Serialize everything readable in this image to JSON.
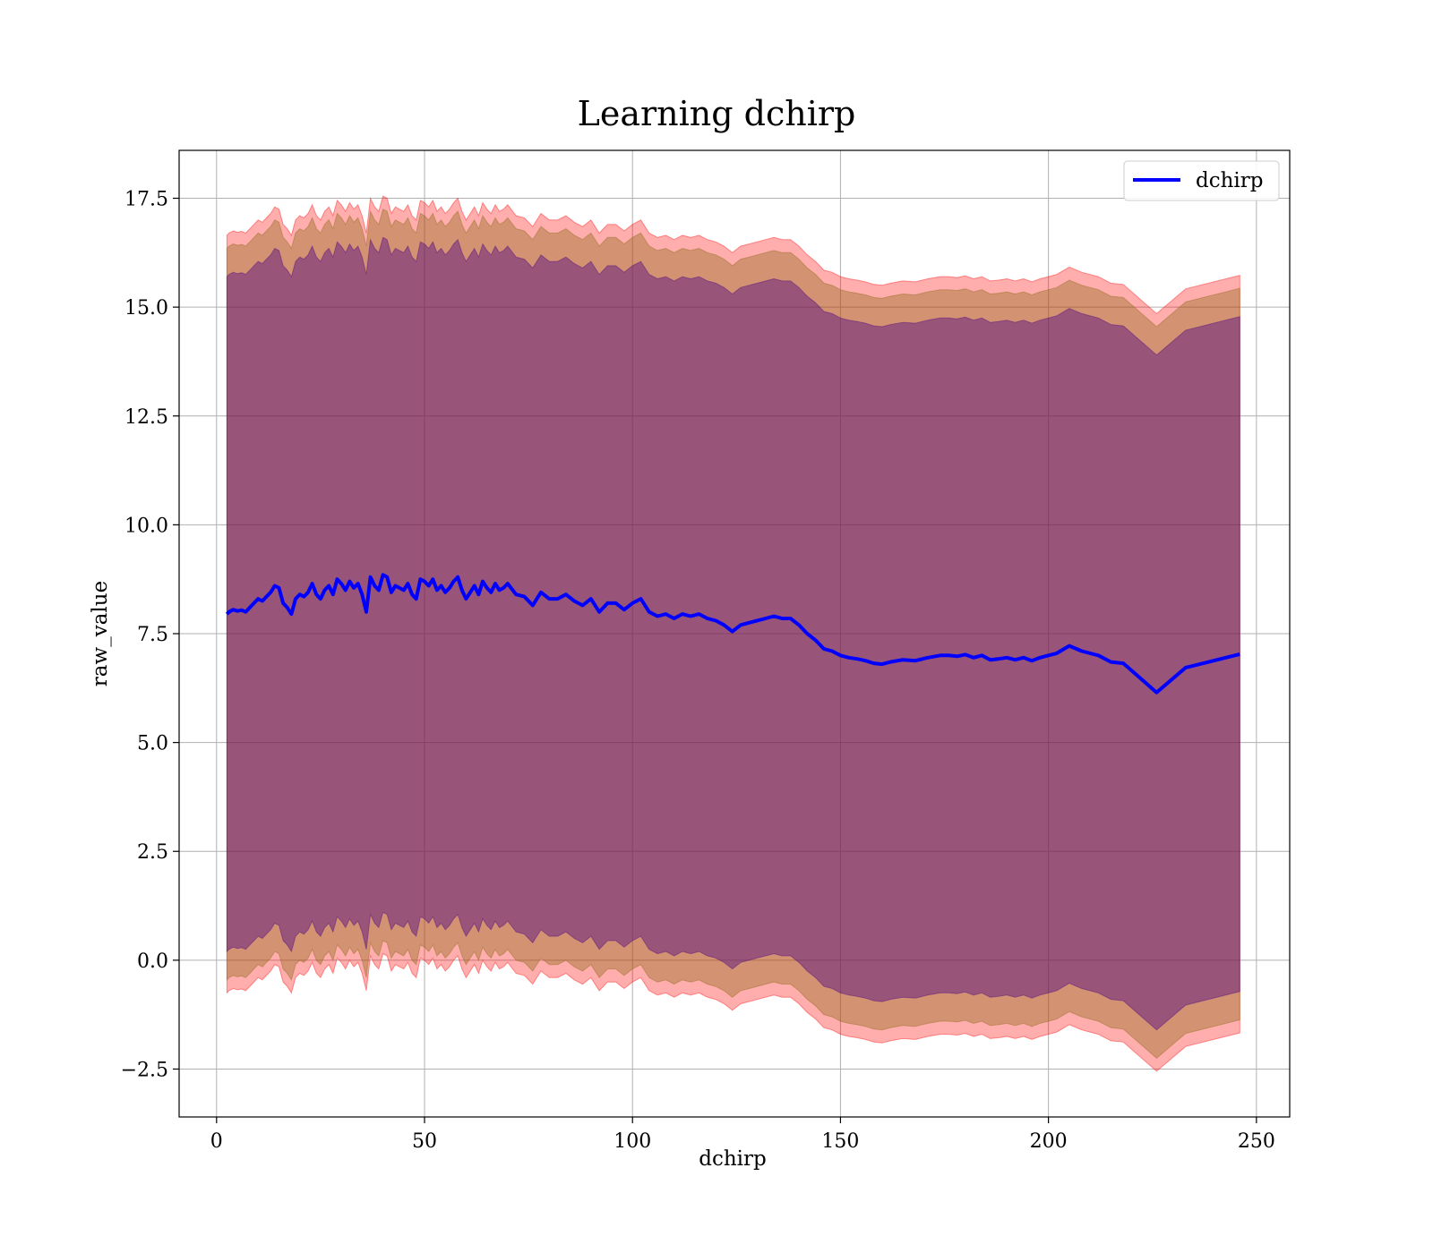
{
  "chart_data": {
    "type": "line",
    "title": "Learning dchirp",
    "xlabel": "dchirp",
    "ylabel": "raw_value",
    "xlim": [
      -9,
      258
    ],
    "ylim": [
      -3.6,
      18.6
    ],
    "xticks": [
      0,
      50,
      100,
      150,
      200,
      250
    ],
    "yticks": [
      -2.5,
      0.0,
      2.5,
      5.0,
      7.5,
      10.0,
      12.5,
      15.0,
      17.5
    ],
    "xtick_labels": [
      "0",
      "50",
      "100",
      "150",
      "200",
      "250"
    ],
    "ytick_labels": [
      "−2.5",
      "0.0",
      "2.5",
      "5.0",
      "7.5",
      "10.0",
      "12.5",
      "15.0",
      "17.5"
    ],
    "grid": true,
    "legend": {
      "placement": "top-right",
      "entries": [
        "dchirp"
      ]
    },
    "colors": {
      "line": "#0000ff",
      "outer_band": "#ff0000",
      "middle_band": "#8b6914",
      "inner_band": "#4b0082",
      "grid": "#b0b0b0"
    },
    "series": [
      {
        "name": "dchirp",
        "x": [
          2.5,
          3,
          4,
          5,
          6,
          7,
          8,
          9,
          10,
          11,
          12,
          13,
          14,
          15,
          16,
          17,
          18,
          19,
          20,
          21,
          22,
          23,
          24,
          25,
          26,
          27,
          28,
          29,
          30,
          31,
          32,
          33,
          34,
          35,
          36,
          37,
          38,
          39,
          40,
          41,
          42,
          43,
          44,
          45,
          46,
          47,
          48,
          49,
          50,
          51,
          52,
          53,
          54,
          55,
          56,
          57,
          58,
          59,
          60,
          61,
          62,
          63,
          64,
          65,
          66,
          67,
          68,
          69,
          70,
          72,
          74,
          76,
          78,
          80,
          82,
          84,
          86,
          88,
          90,
          92,
          94,
          96,
          98,
          100,
          102,
          104,
          106,
          108,
          110,
          112,
          114,
          116,
          118,
          120,
          122,
          124,
          126,
          128,
          130,
          132,
          134,
          136,
          138,
          140,
          142,
          144,
          146,
          148,
          150,
          152,
          154,
          156,
          158,
          160,
          162,
          165,
          168,
          171,
          174,
          176,
          178,
          180,
          182,
          184,
          186,
          188,
          190,
          192,
          194,
          196,
          198,
          200,
          202,
          205,
          208,
          212,
          215,
          218,
          226,
          233,
          246
        ],
        "y": [
          7.95,
          8.0,
          8.05,
          8.02,
          8.04,
          8.0,
          8.1,
          8.2,
          8.3,
          8.25,
          8.35,
          8.45,
          8.6,
          8.55,
          8.2,
          8.1,
          7.95,
          8.3,
          8.4,
          8.35,
          8.45,
          8.65,
          8.4,
          8.3,
          8.5,
          8.6,
          8.4,
          8.75,
          8.65,
          8.5,
          8.7,
          8.55,
          8.65,
          8.4,
          8.0,
          8.8,
          8.6,
          8.5,
          8.85,
          8.8,
          8.45,
          8.6,
          8.55,
          8.5,
          8.65,
          8.4,
          8.3,
          8.75,
          8.7,
          8.6,
          8.75,
          8.5,
          8.6,
          8.45,
          8.55,
          8.7,
          8.8,
          8.5,
          8.3,
          8.45,
          8.6,
          8.4,
          8.7,
          8.55,
          8.45,
          8.65,
          8.5,
          8.55,
          8.65,
          8.4,
          8.35,
          8.15,
          8.45,
          8.3,
          8.3,
          8.4,
          8.25,
          8.15,
          8.3,
          8.0,
          8.2,
          8.2,
          8.05,
          8.2,
          8.3,
          8.0,
          7.9,
          7.95,
          7.85,
          7.95,
          7.9,
          7.95,
          7.85,
          7.8,
          7.7,
          7.55,
          7.7,
          7.75,
          7.8,
          7.85,
          7.9,
          7.85,
          7.85,
          7.7,
          7.5,
          7.35,
          7.15,
          7.1,
          7.0,
          6.95,
          6.92,
          6.88,
          6.82,
          6.8,
          6.85,
          6.9,
          6.88,
          6.95,
          7.0,
          7.0,
          6.98,
          7.02,
          6.95,
          7.0,
          6.9,
          6.92,
          6.95,
          6.9,
          6.95,
          6.88,
          6.95,
          7.0,
          7.05,
          7.22,
          7.1,
          7.0,
          6.85,
          6.82,
          6.15,
          6.72,
          7.03
        ]
      }
    ],
    "bands": [
      {
        "name": "outer",
        "half_width": 8.7
      },
      {
        "name": "middle",
        "half_width": 8.4
      },
      {
        "name": "inner",
        "half_width": 7.75
      }
    ]
  }
}
